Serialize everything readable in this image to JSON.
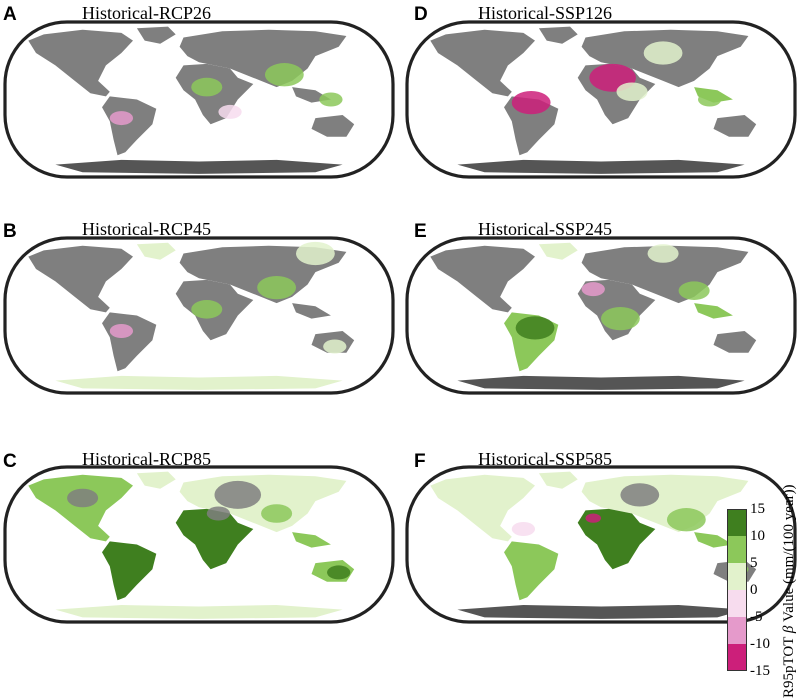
{
  "panels": [
    {
      "letter": "A",
      "title": "Historical-RCP26",
      "scheme": "a"
    },
    {
      "letter": "B",
      "title": "Historical-RCP45",
      "scheme": "b"
    },
    {
      "letter": "C",
      "title": "Historical-RCP85",
      "scheme": "c"
    },
    {
      "letter": "D",
      "title": "Historical-SSP126",
      "scheme": "d"
    },
    {
      "letter": "E",
      "title": "Historical-SSP245",
      "scheme": "e"
    },
    {
      "letter": "F",
      "title": "Historical-SSP585",
      "scheme": "f"
    }
  ],
  "colorbar": {
    "label_prefix": "R95pTOT ",
    "label_symbol": "β",
    "label_suffix": " Value (mm/(100 year))",
    "ticks": [
      "15",
      "10",
      "5",
      "0",
      "-5",
      "-10",
      "-15"
    ],
    "colors": [
      "#3f7f1f",
      "#8cc85a",
      "#e2f2cc",
      "#f7dcee",
      "#e59acb",
      "#cc1f7a"
    ],
    "land_gray": "#7f7f7f",
    "ocean": "#ffffff"
  }
}
